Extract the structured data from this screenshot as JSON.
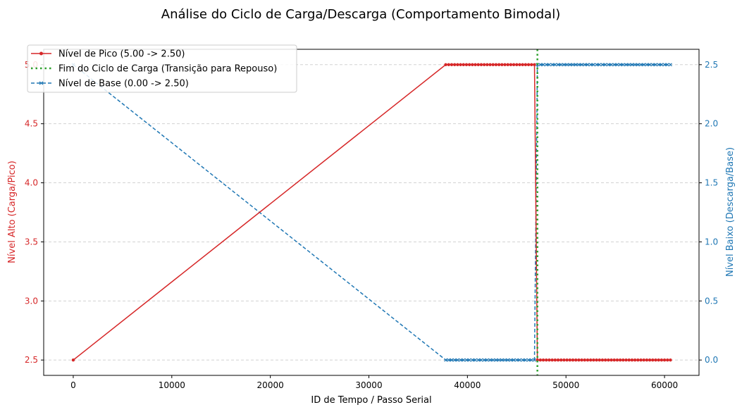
{
  "chart_data": {
    "type": "line",
    "title": "Análise do Ciclo de Carga/Descarga (Comportamento Bimodal)",
    "xlabel": "ID de Tempo / Passo Serial",
    "ylabel_left": "Nível Alto (Carga/Pico)",
    "ylabel_right": "Nível Baixo (Descarga/Base)",
    "xlim": [
      -3000,
      63500
    ],
    "ylim_left": [
      2.37,
      5.13
    ],
    "ylim_right": [
      -0.13,
      2.63
    ],
    "x_ticks": [
      0,
      10000,
      20000,
      30000,
      40000,
      50000,
      60000
    ],
    "x_tick_labels": [
      "0",
      "10000",
      "20000",
      "30000",
      "40000",
      "50000",
      "60000"
    ],
    "y_left_ticks": [
      2.5,
      3.0,
      3.5,
      4.0,
      4.5,
      5.0
    ],
    "y_left_tick_labels": [
      "2.5",
      "3.0",
      "3.5",
      "4.0",
      "4.5",
      "5.0"
    ],
    "y_right_ticks": [
      0.0,
      0.5,
      1.0,
      1.5,
      2.0,
      2.5
    ],
    "y_right_tick_labels": [
      "0.0",
      "0.5",
      "1.0",
      "1.5",
      "2.0",
      "2.5"
    ],
    "grid": "horizontal dashed",
    "legend_position": "top-left",
    "colors": {
      "peak": "#d62728",
      "base": "#1f77b4",
      "transition": "#2ca02c",
      "grid": "#cccccc"
    },
    "series": [
      {
        "name": "Nível de Pico (5.00 -> 2.50)",
        "axis": "left",
        "style": "solid",
        "marker": "circle",
        "x": [
          0,
          37800,
          38100,
          38400,
          38700,
          39000,
          39300,
          39600,
          39900,
          40200,
          40500,
          40800,
          41100,
          41400,
          41700,
          42000,
          42300,
          42600,
          42900,
          43200,
          43500,
          43800,
          44100,
          44400,
          44700,
          45000,
          45300,
          45600,
          45900,
          46200,
          46500,
          46800,
          47100,
          47400,
          47700,
          48000,
          48300,
          48600,
          48900,
          49200,
          49500,
          49800,
          50100,
          50400,
          50700,
          51000,
          51300,
          51600,
          51900,
          52200,
          52500,
          52800,
          53100,
          53400,
          53700,
          54000,
          54300,
          54600,
          54900,
          55200,
          55500,
          55800,
          56100,
          56400,
          56700,
          57000,
          57300,
          57600,
          57900,
          58200,
          58500,
          58800,
          59100,
          59400,
          59700,
          60000,
          60300,
          60600
        ],
        "y": [
          2.5,
          5.0,
          5.0,
          5.0,
          5.0,
          5.0,
          5.0,
          5.0,
          5.0,
          5.0,
          5.0,
          5.0,
          5.0,
          5.0,
          5.0,
          5.0,
          5.0,
          5.0,
          5.0,
          5.0,
          5.0,
          5.0,
          5.0,
          5.0,
          5.0,
          5.0,
          5.0,
          5.0,
          5.0,
          5.0,
          5.0,
          5.0,
          2.5,
          2.5,
          2.5,
          2.5,
          2.5,
          2.5,
          2.5,
          2.5,
          2.5,
          2.5,
          2.5,
          2.5,
          2.5,
          2.5,
          2.5,
          2.5,
          2.5,
          2.5,
          2.5,
          2.5,
          2.5,
          2.5,
          2.5,
          2.5,
          2.5,
          2.5,
          2.5,
          2.5,
          2.5,
          2.5,
          2.5,
          2.5,
          2.5,
          2.5,
          2.5,
          2.5,
          2.5,
          2.5,
          2.5,
          2.5,
          2.5,
          2.5,
          2.5,
          2.5,
          2.5,
          2.5
        ]
      },
      {
        "name": "Fim do Ciclo de Carga (Transição para Repouso)",
        "axis": "left",
        "style": "dotted",
        "marker": "none",
        "vline_x": 47100
      },
      {
        "name": "Nível de Base (0.00 -> 2.50)",
        "axis": "right",
        "style": "dashed",
        "marker": "x",
        "x": [
          0,
          37800,
          38100,
          38400,
          38700,
          39000,
          39300,
          39600,
          39900,
          40200,
          40500,
          40800,
          41100,
          41400,
          41700,
          42000,
          42300,
          42600,
          42900,
          43200,
          43500,
          43800,
          44100,
          44400,
          44700,
          45000,
          45300,
          45600,
          45900,
          46200,
          46500,
          46800,
          47100,
          47400,
          47700,
          48000,
          48300,
          48600,
          48900,
          49200,
          49500,
          49800,
          50100,
          50400,
          50700,
          51000,
          51300,
          51600,
          51900,
          52200,
          52500,
          52800,
          53100,
          53400,
          53700,
          54000,
          54300,
          54600,
          54900,
          55200,
          55500,
          55800,
          56100,
          56400,
          56700,
          57000,
          57300,
          57600,
          57900,
          58200,
          58500,
          58800,
          59100,
          59400,
          59700,
          60000,
          60300,
          60600
        ],
        "y": [
          2.5,
          0.0,
          0.0,
          0.0,
          0.0,
          0.0,
          0.0,
          0.0,
          0.0,
          0.0,
          0.0,
          0.0,
          0.0,
          0.0,
          0.0,
          0.0,
          0.0,
          0.0,
          0.0,
          0.0,
          0.0,
          0.0,
          0.0,
          0.0,
          0.0,
          0.0,
          0.0,
          0.0,
          0.0,
          0.0,
          0.0,
          0.0,
          2.5,
          2.5,
          2.5,
          2.5,
          2.5,
          2.5,
          2.5,
          2.5,
          2.5,
          2.5,
          2.5,
          2.5,
          2.5,
          2.5,
          2.5,
          2.5,
          2.5,
          2.5,
          2.5,
          2.5,
          2.5,
          2.5,
          2.5,
          2.5,
          2.5,
          2.5,
          2.5,
          2.5,
          2.5,
          2.5,
          2.5,
          2.5,
          2.5,
          2.5,
          2.5,
          2.5,
          2.5,
          2.5,
          2.5,
          2.5,
          2.5,
          2.5,
          2.5,
          2.5,
          2.5,
          2.5
        ]
      }
    ]
  }
}
